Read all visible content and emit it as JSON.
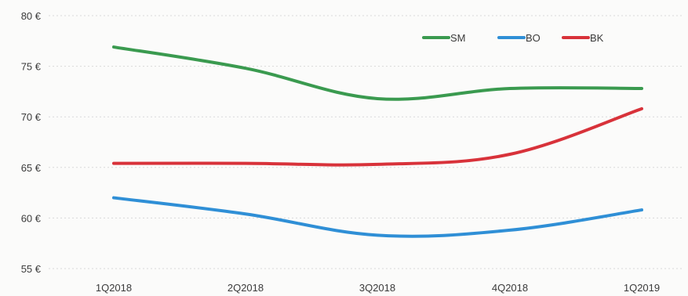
{
  "chart_data": {
    "type": "line",
    "categories": [
      "1Q2018",
      "2Q2018",
      "3Q2018",
      "4Q2018",
      "1Q2019"
    ],
    "series": [
      {
        "name": "SM",
        "values": [
          76.9,
          74.8,
          71.8,
          72.8,
          72.8
        ],
        "color": "#3a9a4f"
      },
      {
        "name": "BO",
        "values": [
          62.0,
          60.4,
          58.3,
          58.8,
          60.8
        ],
        "color": "#2f8fd6"
      },
      {
        "name": "BK",
        "values": [
          65.4,
          65.4,
          65.3,
          66.3,
          70.8
        ],
        "color": "#d8323a"
      }
    ],
    "y_ticks": [
      "55 €",
      "60 €",
      "65 €",
      "70 €",
      "75 €",
      "80 €"
    ],
    "ylim": [
      55,
      80
    ],
    "grid": true,
    "legend_position": "top-right"
  }
}
